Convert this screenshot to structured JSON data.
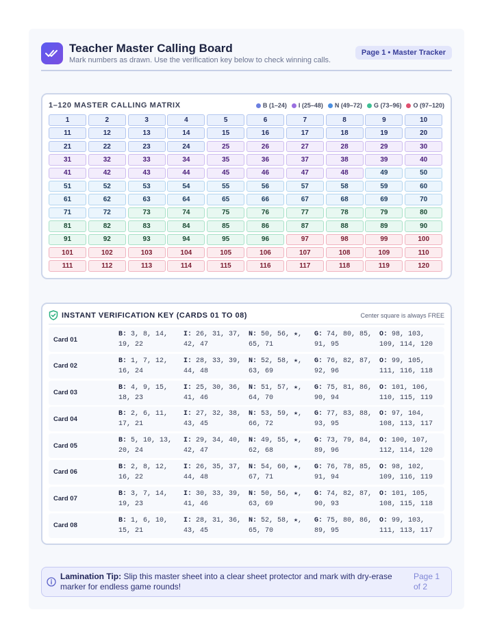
{
  "header": {
    "title": "Teacher Master Calling Board",
    "subtitle": "Mark numbers as drawn. Use the verification key below to check winning calls.",
    "badge": "Page 1 • Master Tracker"
  },
  "matrix": {
    "title": "1–120 MASTER CALLING MATRIX",
    "legend": [
      {
        "label": "B (1–24)",
        "color": "#6b7fe0"
      },
      {
        "label": "I (25–48)",
        "color": "#9a6fe0"
      },
      {
        "label": "N (49–72)",
        "color": "#4b8fe0"
      },
      {
        "label": "G (73–96)",
        "color": "#3fbf94"
      },
      {
        "label": "O (97–120)",
        "color": "#e0506e"
      }
    ],
    "count": 120
  },
  "verification": {
    "title": "INSTANT VERIFICATION KEY (CARDS 01 TO 08)",
    "note": "Center square is always FREE",
    "cards": [
      {
        "label": "Card 01",
        "B": "3, 8, 14, 19, 22",
        "I": "26, 31, 37, 42, 47",
        "N": "50, 56, ★, 65, 71",
        "G": "74, 80, 85, 91, 95",
        "O": "98, 103, 109, 114, 120"
      },
      {
        "label": "Card 02",
        "B": "1, 7, 12, 16, 24",
        "I": "28, 33, 39, 44, 48",
        "N": "52, 58, ★, 63, 69",
        "G": "76, 82, 87, 92, 96",
        "O": "99, 105, 111, 116, 118"
      },
      {
        "label": "Card 03",
        "B": "4, 9, 15, 18, 23",
        "I": "25, 30, 36, 41, 46",
        "N": "51, 57, ★, 64, 70",
        "G": "75, 81, 86, 90, 94",
        "O": "101, 106, 110, 115, 119"
      },
      {
        "label": "Card 04",
        "B": "2, 6, 11, 17, 21",
        "I": "27, 32, 38, 43, 45",
        "N": "53, 59, ★, 66, 72",
        "G": "77, 83, 88, 93, 95",
        "O": "97, 104, 108, 113, 117"
      },
      {
        "label": "Card 05",
        "B": "5, 10, 13, 20, 24",
        "I": "29, 34, 40, 42, 47",
        "N": "49, 55, ★, 62, 68",
        "G": "73, 79, 84, 89, 96",
        "O": "100, 107, 112, 114, 120"
      },
      {
        "label": "Card 06",
        "B": "2, 8, 12, 16, 22",
        "I": "26, 35, 37, 44, 48",
        "N": "54, 60, ★, 67, 71",
        "G": "76, 78, 85, 91, 94",
        "O": "98, 102, 109, 116, 119"
      },
      {
        "label": "Card 07",
        "B": "3, 7, 14, 19, 23",
        "I": "30, 33, 39, 41, 46",
        "N": "50, 56, ★, 63, 69",
        "G": "74, 82, 87, 90, 93",
        "O": "101, 105, 108, 115, 118"
      },
      {
        "label": "Card 08",
        "B": "1, 6, 10, 15, 21",
        "I": "28, 31, 36, 43, 45",
        "N": "52, 58, ★, 65, 70",
        "G": "75, 80, 86, 89, 95",
        "O": "99, 103, 111, 113, 117"
      }
    ]
  },
  "tip": {
    "label": "Lamination Tip:",
    "text": " Slip this master sheet into a clear sheet protector and mark with dry-erase marker for endless game rounds!",
    "page": "Page 1 of 2"
  },
  "colors": {
    "accent": "#5b5cf0",
    "shield": "#2bb07f",
    "info": "#5a60c8"
  },
  "icons": {
    "logo": "double-check-icon",
    "verify": "shield-check-icon",
    "tip": "info-circle-icon"
  }
}
